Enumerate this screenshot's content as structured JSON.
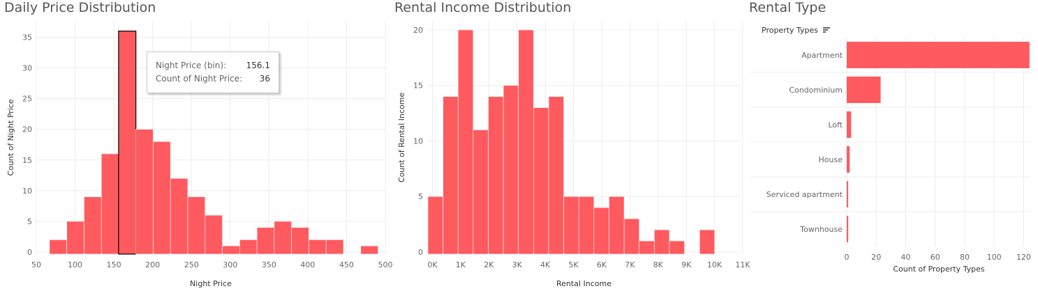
{
  "titles": {
    "daily": "Daily Price Distribution",
    "rental": "Rental Income Distribution",
    "type": "Rental Type"
  },
  "tooltip": {
    "label1": "Night Price (bin):",
    "value1": "156.1",
    "label2": "Count of Night Price:",
    "value2": "36"
  },
  "type_header": "Property Types",
  "colors": {
    "bar": "#ff5a5f",
    "grid": "#ececec"
  },
  "chart_data": [
    {
      "type": "bar",
      "title": "Daily Price Distribution",
      "xlabel": "Night Price",
      "ylabel": "Count of Night Price",
      "bin_width": 22.3,
      "bin_starts": [
        67.0,
        89.3,
        111.6,
        133.9,
        156.1,
        178.4,
        200.7,
        223.0,
        245.3,
        267.6,
        289.9,
        312.2,
        334.5,
        356.8,
        379.1,
        401.4,
        423.7,
        446.0,
        468.3
      ],
      "values": [
        2,
        5,
        9,
        16,
        36,
        20,
        18,
        12,
        9,
        6,
        1,
        2,
        4,
        5,
        4,
        2,
        2,
        0,
        1
      ],
      "highlighted_bin": 4,
      "xlim": [
        50,
        500
      ],
      "xticks": [
        50,
        100,
        150,
        200,
        250,
        300,
        350,
        400,
        450,
        500
      ],
      "ylim": [
        0,
        38
      ],
      "yticks": [
        0,
        5,
        10,
        15,
        20,
        25,
        30,
        35
      ]
    },
    {
      "type": "bar",
      "title": "Rental Income Distribution",
      "xlabel": "Rental Income",
      "ylabel": "Count of Rental Income",
      "bin_width": 535,
      "bin_starts": [
        -160,
        375,
        910,
        1445,
        1980,
        2515,
        3050,
        3585,
        4120,
        4655,
        5190,
        5725,
        6260,
        6795,
        7330,
        7865,
        8400,
        8935,
        9470,
        10005
      ],
      "values": [
        5,
        14,
        20,
        11,
        14,
        15,
        20,
        13,
        14,
        5,
        5,
        4,
        5,
        3,
        1,
        2,
        1,
        0,
        2,
        0
      ],
      "xlim": [
        -160,
        10900
      ],
      "xticks": [
        "0K",
        "1K",
        "2K",
        "3K",
        "4K",
        "5K",
        "6K",
        "7K",
        "8K",
        "9K",
        "10K",
        "11K"
      ],
      "ylim": [
        0,
        21
      ],
      "yticks": [
        0,
        5,
        10,
        15,
        20
      ]
    },
    {
      "type": "bar",
      "orientation": "horizontal",
      "title": "Rental Type",
      "xlabel": "Count of Property Types",
      "categories": [
        "Apartment",
        "Condominium",
        "Loft",
        "House",
        "Serviced apartment",
        "Townhouse"
      ],
      "values": [
        124,
        23,
        3,
        2,
        1,
        1
      ],
      "xlim": [
        0,
        125
      ],
      "xticks": [
        0,
        20,
        40,
        60,
        80,
        100,
        120
      ]
    }
  ]
}
